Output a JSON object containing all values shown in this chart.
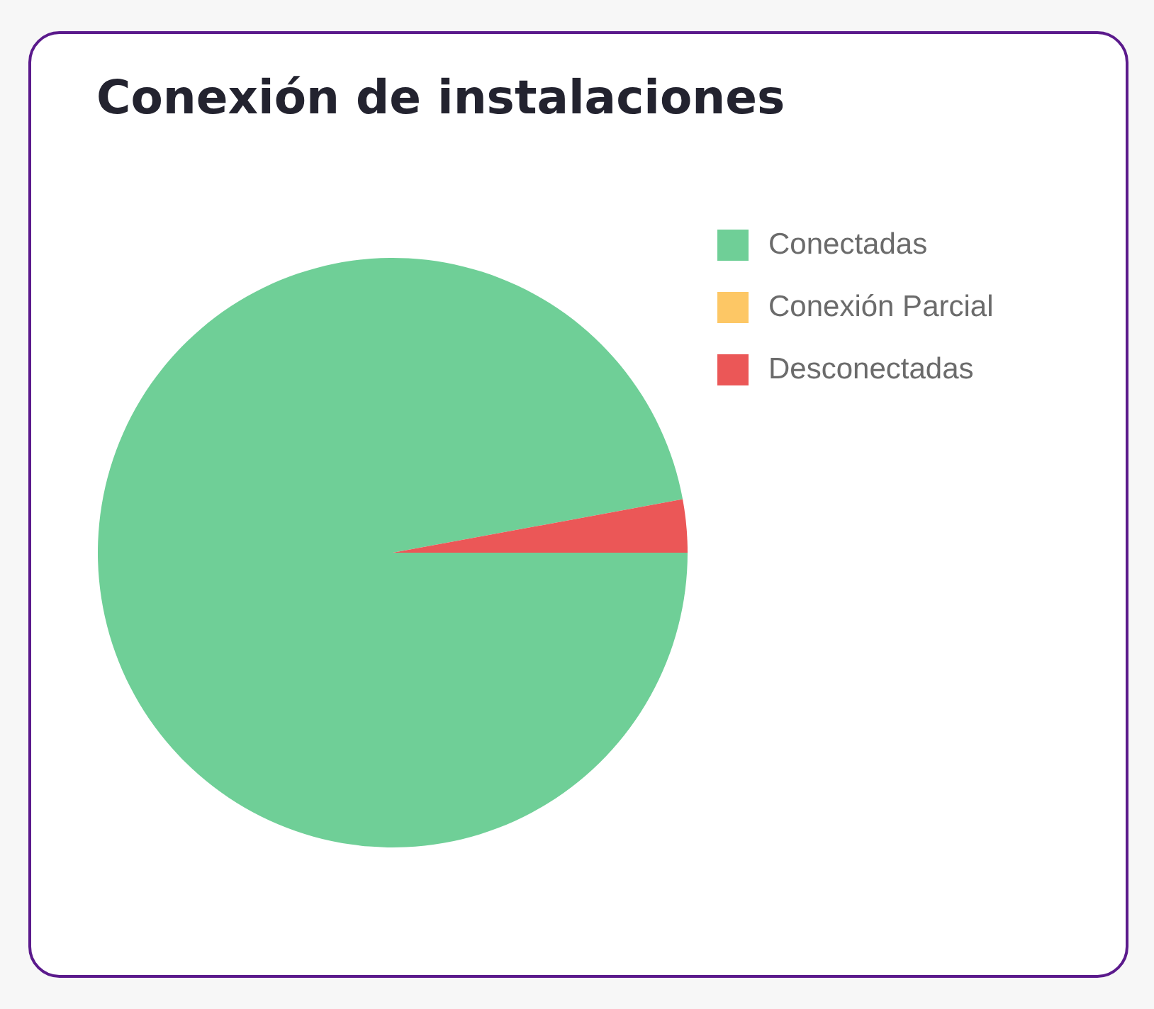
{
  "chart_data": {
    "type": "pie",
    "title": "Conexión de instalaciones",
    "categories": [
      "Conectadas",
      "Conexión Parcial",
      "Desconectadas"
    ],
    "values": [
      97.1,
      0,
      2.9
    ],
    "colors": [
      "#6fcf97",
      "#fdc765",
      "#eb5757"
    ],
    "legend": "top right"
  }
}
